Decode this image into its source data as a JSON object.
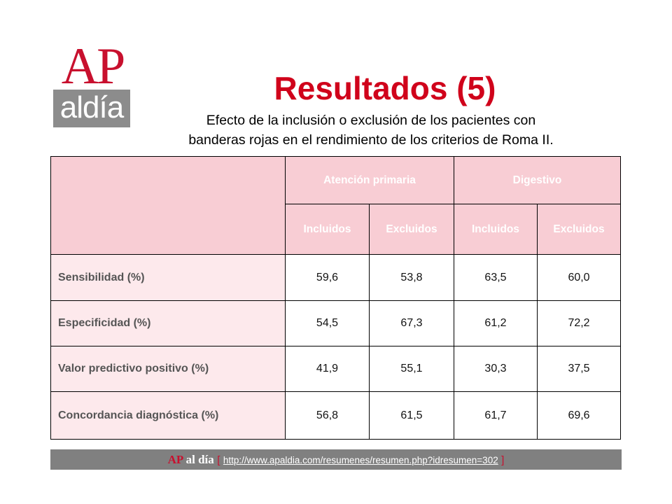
{
  "logo": {
    "top": "AP",
    "bottom": "aldía"
  },
  "title": "Resultados (5)",
  "subtitle_line1": "Efecto de la inclusión o exclusión de los pacientes con",
  "subtitle_line2": "banderas rojas en el rendimiento de los criterios de Roma II.",
  "table": {
    "groups": [
      "Atención primaria",
      "Digestivo"
    ],
    "subheaders": [
      "Incluidos",
      "Excluidos",
      "Incluidos",
      "Excluidos"
    ],
    "rows": [
      {
        "label": "Sensibilidad (%)",
        "values": [
          "59,6",
          "53,8",
          "63,5",
          "60,0"
        ]
      },
      {
        "label": "Especificidad (%)",
        "values": [
          "54,5",
          "67,3",
          "61,2",
          "72,2"
        ]
      },
      {
        "label": "Valor predictivo positivo (%)",
        "values": [
          "41,9",
          "55,1",
          "30,3",
          "37,5"
        ]
      },
      {
        "label": "Concordancia diagnóstica (%)",
        "values": [
          "56,8",
          "61,5",
          "61,7",
          "69,6"
        ]
      }
    ]
  },
  "footer": {
    "brand_ap": "AP",
    "brand_rest": "al día",
    "bracket_open": "[",
    "url": "http://www.apaldia.com/resumenes/resumen.php?idresumen=302",
    "bracket_close": "]"
  },
  "colors": {
    "accent": "#d0021b",
    "header_bg": "#f8cdd4",
    "label_bg": "#fde9ec",
    "footer_bg": "#808080"
  }
}
